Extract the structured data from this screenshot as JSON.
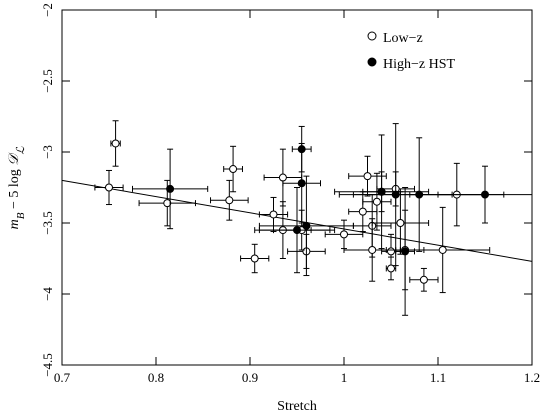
{
  "chart_data": {
    "type": "scatter",
    "xlabel": "Stretch",
    "ylabel_parts": [
      "m",
      "B",
      " − 5 log ",
      "𝒟",
      "ℒ"
    ],
    "xlim": [
      0.7,
      1.2
    ],
    "xticks": [
      0.7,
      0.8,
      0.9,
      1,
      1.1,
      1.2
    ],
    "ylim": [
      -4.5,
      -2
    ],
    "yticks": [
      {
        "value": -4.5,
        "label": "−4.5"
      },
      {
        "value": -4,
        "label": "−4"
      },
      {
        "value": -3.5,
        "label": "−3.5"
      },
      {
        "value": -3,
        "label": "−3"
      },
      {
        "value": -2.5,
        "label": "−2.5"
      },
      {
        "value": -2,
        "label": "−2"
      }
    ],
    "legend": "top-right",
    "fit_line": {
      "x": [
        0.7,
        1.2
      ],
      "y": [
        -3.2,
        -3.77
      ]
    },
    "series": [
      {
        "name": "Low−z",
        "marker": "open",
        "color": "#000000",
        "x": [
          0.75,
          0.757,
          0.812,
          0.878,
          0.882,
          0.905,
          0.925,
          0.935,
          0.935,
          0.96,
          0.955,
          1.0,
          1.02,
          1.025,
          1.03,
          1.03,
          1.035,
          1.04,
          1.05,
          1.05,
          1.055,
          1.06,
          1.065,
          1.085,
          1.105,
          1.12
        ],
        "values": [
          -3.25,
          -2.94,
          -3.36,
          -3.34,
          -3.12,
          -3.75,
          -3.44,
          -3.55,
          -3.18,
          -3.7,
          -3.55,
          -3.58,
          -3.42,
          -3.17,
          -3.52,
          -3.69,
          -3.35,
          -3.28,
          -3.7,
          -3.82,
          -3.26,
          -3.5,
          -3.69,
          -3.9,
          -3.69,
          -3.3
        ],
        "xerr": [
          0.015,
          0.005,
          0.03,
          0.02,
          0.01,
          0.015,
          0.015,
          0.03,
          0.02,
          0.02,
          0.03,
          0.02,
          0.015,
          0.02,
          0.02,
          0.03,
          0.015,
          0.02,
          0.01,
          0.005,
          0.02,
          0.03,
          0.02,
          0.015,
          0.05,
          0.05
        ],
        "yerr": [
          0.12,
          0.16,
          0.16,
          0.14,
          0.16,
          0.1,
          0.12,
          0.2,
          0.2,
          0.12,
          0.14,
          0.1,
          0.14,
          0.14,
          0.22,
          0.22,
          0.2,
          0.14,
          0.12,
          0.08,
          0.12,
          0.22,
          0.28,
          0.08,
          0.3,
          0.22
        ]
      },
      {
        "name": "High−z HST",
        "marker": "filled",
        "color": "#000000",
        "x": [
          0.815,
          0.955,
          0.955,
          0.95,
          0.96,
          1.04,
          1.055,
          1.065,
          1.08,
          1.15
        ],
        "values": [
          -3.26,
          -3.22,
          -2.98,
          -3.55,
          -3.52,
          -3.28,
          -3.3,
          -3.7,
          -3.3,
          -3.3
        ],
        "xerr": [
          0.04,
          0.02,
          0.01,
          0.04,
          0.05,
          0.05,
          0.06,
          0.01,
          0.07,
          0.05
        ],
        "yerr": [
          0.28,
          0.28,
          0.16,
          0.3,
          0.35,
          0.4,
          0.5,
          0.45,
          0.4,
          0.2
        ]
      }
    ]
  }
}
